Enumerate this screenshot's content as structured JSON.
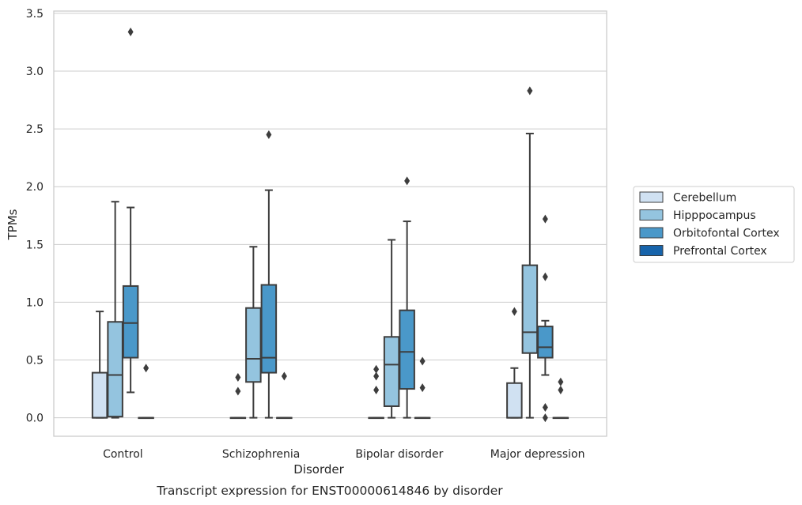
{
  "caption": "Transcript expression for ENST00000614846 by disorder",
  "chart_data": {
    "type": "boxplot",
    "title": "",
    "xlabel": "Disorder",
    "ylabel": "TPMs",
    "ylim": [
      -0.16,
      3.52
    ],
    "yticks": [
      0.0,
      0.5,
      1.0,
      1.5,
      2.0,
      2.5,
      3.0,
      3.5
    ],
    "ytick_labels": [
      "0.0",
      "0.5",
      "1.0",
      "1.5",
      "2.0",
      "2.5",
      "3.0",
      "3.5"
    ],
    "grid": "horizontal",
    "legend_position": "right",
    "categories": [
      "Control",
      "Schizophrenia",
      "Bipolar disorder",
      "Major depression"
    ],
    "series": [
      {
        "name": "Cerebellum",
        "color": "#d0e1f2",
        "boxes": [
          {
            "whislo": 0.0,
            "q1": 0.0,
            "med": 0.0,
            "q3": 0.39,
            "whishi": 0.92,
            "fliers": []
          },
          {
            "whislo": 0.0,
            "q1": 0.0,
            "med": 0.0,
            "q3": 0.0,
            "whishi": 0.0,
            "fliers": [
              0.23,
              0.35
            ]
          },
          {
            "whislo": 0.0,
            "q1": 0.0,
            "med": 0.0,
            "q3": 0.0,
            "whishi": 0.0,
            "fliers": [
              0.24,
              0.36,
              0.42
            ]
          },
          {
            "whislo": 0.0,
            "q1": 0.0,
            "med": 0.0,
            "q3": 0.3,
            "whishi": 0.43,
            "fliers": [
              0.92
            ]
          }
        ]
      },
      {
        "name": "Hipppocampus",
        "color": "#94c4df",
        "boxes": [
          {
            "whislo": 0.0,
            "q1": 0.01,
            "med": 0.37,
            "q3": 0.83,
            "whishi": 1.87,
            "fliers": []
          },
          {
            "whislo": 0.0,
            "q1": 0.31,
            "med": 0.51,
            "q3": 0.95,
            "whishi": 1.48,
            "fliers": []
          },
          {
            "whislo": 0.0,
            "q1": 0.1,
            "med": 0.46,
            "q3": 0.7,
            "whishi": 1.54,
            "fliers": []
          },
          {
            "whislo": 0.0,
            "q1": 0.56,
            "med": 0.74,
            "q3": 1.32,
            "whishi": 2.46,
            "fliers": [
              2.83
            ]
          }
        ]
      },
      {
        "name": "Orbitofontal Cortex",
        "color": "#4a98c9",
        "boxes": [
          {
            "whislo": 0.22,
            "q1": 0.52,
            "med": 0.82,
            "q3": 1.14,
            "whishi": 1.82,
            "fliers": [
              3.34
            ]
          },
          {
            "whislo": 0.0,
            "q1": 0.39,
            "med": 0.52,
            "q3": 1.15,
            "whishi": 1.97,
            "fliers": [
              2.45
            ]
          },
          {
            "whislo": 0.0,
            "q1": 0.25,
            "med": 0.57,
            "q3": 0.93,
            "whishi": 1.7,
            "fliers": [
              2.05
            ]
          },
          {
            "whislo": 0.37,
            "q1": 0.52,
            "med": 0.61,
            "q3": 0.79,
            "whishi": 0.84,
            "fliers": [
              0.0,
              0.09,
              1.22,
              1.72
            ]
          }
        ]
      },
      {
        "name": "Prefrontal Cortex",
        "color": "#1764ab",
        "boxes": [
          {
            "whislo": 0.0,
            "q1": 0.0,
            "med": 0.0,
            "q3": 0.0,
            "whishi": 0.0,
            "fliers": [
              0.43
            ]
          },
          {
            "whislo": 0.0,
            "q1": 0.0,
            "med": 0.0,
            "q3": 0.0,
            "whishi": 0.0,
            "fliers": [
              0.36
            ]
          },
          {
            "whislo": 0.0,
            "q1": 0.0,
            "med": 0.0,
            "q3": 0.0,
            "whishi": 0.0,
            "fliers": [
              0.26,
              0.49
            ]
          },
          {
            "whislo": 0.0,
            "q1": 0.0,
            "med": 0.0,
            "q3": 0.0,
            "whishi": 0.0,
            "fliers": [
              0.24,
              0.31
            ]
          }
        ]
      }
    ]
  }
}
